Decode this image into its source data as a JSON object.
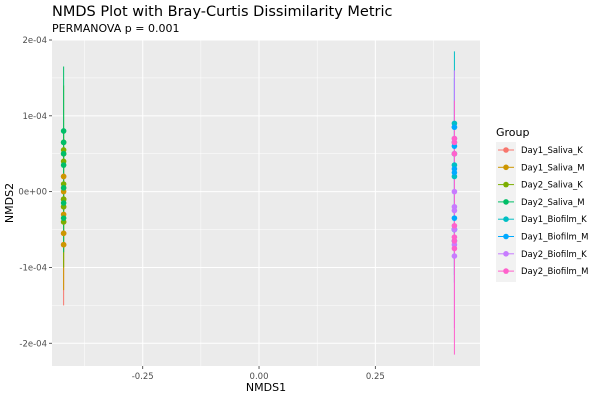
{
  "chart_data": {
    "type": "scatter",
    "title": "NMDS Plot with Bray-Curtis Dissimilarity Metric",
    "subtitle": "PERMANOVA p = 0.001",
    "xlabel": "NMDS1",
    "ylabel": "NMDS2",
    "xlim": [
      -0.445,
      0.475
    ],
    "ylim": [
      -0.00023,
      0.0002
    ],
    "x_ticks": [
      -0.25,
      0.0,
      0.25
    ],
    "x_tick_labels": [
      "-0.25",
      "0.00",
      "0.25"
    ],
    "y_ticks": [
      -0.0002,
      -0.0001,
      0.0,
      0.0001,
      0.0002
    ],
    "y_tick_labels": [
      "-2e-04",
      "-1e-04",
      "0e+00",
      "1e-04",
      "2e-04"
    ],
    "grid": true,
    "legend": {
      "title": "Group",
      "position": "right"
    },
    "series": [
      {
        "name": "Day1_Saliva_K",
        "color": "#F8766D",
        "x": -0.42,
        "y": [
          2e-05,
          -1e-05,
          -4e-05,
          -7e-05,
          -5.5e-05,
          5e-06,
          -2e-05
        ],
        "error_range": [
          -0.00015,
          5e-05
        ]
      },
      {
        "name": "Day1_Saliva_M",
        "color": "#CD9600",
        "x": -0.42,
        "y": [
          5e-05,
          2e-05,
          -1e-05,
          -3e-05,
          -5.5e-05,
          -7e-05,
          0.0
        ],
        "error_range": [
          -0.00013,
          8e-05
        ]
      },
      {
        "name": "Day2_Saliva_K",
        "color": "#7CAE00",
        "x": -0.42,
        "y": [
          6.5e-05,
          4e-05,
          1e-05,
          -2e-05,
          -4e-05,
          5.5e-05,
          -1e-05
        ],
        "error_range": [
          -0.0001,
          0.00014
        ]
      },
      {
        "name": "Day2_Saliva_M",
        "color": "#00BE67",
        "x": -0.42,
        "y": [
          8e-05,
          6.5e-05,
          5e-05,
          3.5e-05,
          5e-06,
          -1.5e-05,
          -3.5e-05
        ],
        "error_range": [
          -8e-05,
          0.000165
        ]
      },
      {
        "name": "Day1_Biofilm_K",
        "color": "#00BFC4",
        "x": 0.42,
        "y": [
          9e-05,
          6.5e-05,
          3.5e-05,
          2e-05,
          -5e-05,
          5e-05,
          8.5e-05
        ],
        "error_range": [
          -0.00011,
          0.000185
        ]
      },
      {
        "name": "Day1_Biofilm_M",
        "color": "#00A9FF",
        "x": 0.42,
        "y": [
          6e-05,
          2.5e-05,
          -3.5e-05,
          -6.5e-05,
          8.5e-05,
          3e-05,
          -5e-05
        ],
        "error_range": [
          -0.00012,
          0.00015
        ]
      },
      {
        "name": "Day2_Biofilm_K",
        "color": "#C77CFF",
        "x": 0.42,
        "y": [
          0.0,
          -2.5e-05,
          -5e-05,
          -7e-05,
          -8.5e-05,
          7e-05,
          -2e-05
        ],
        "error_range": [
          -0.00018,
          0.00016
        ]
      },
      {
        "name": "Day2_Biofilm_M",
        "color": "#FF61CC",
        "x": 0.42,
        "y": [
          6.5e-05,
          5e-05,
          -4.5e-05,
          -7.5e-05,
          7e-05,
          -6e-05,
          -6.5e-05
        ],
        "error_range": [
          -0.000215,
          0.00012
        ]
      }
    ]
  }
}
